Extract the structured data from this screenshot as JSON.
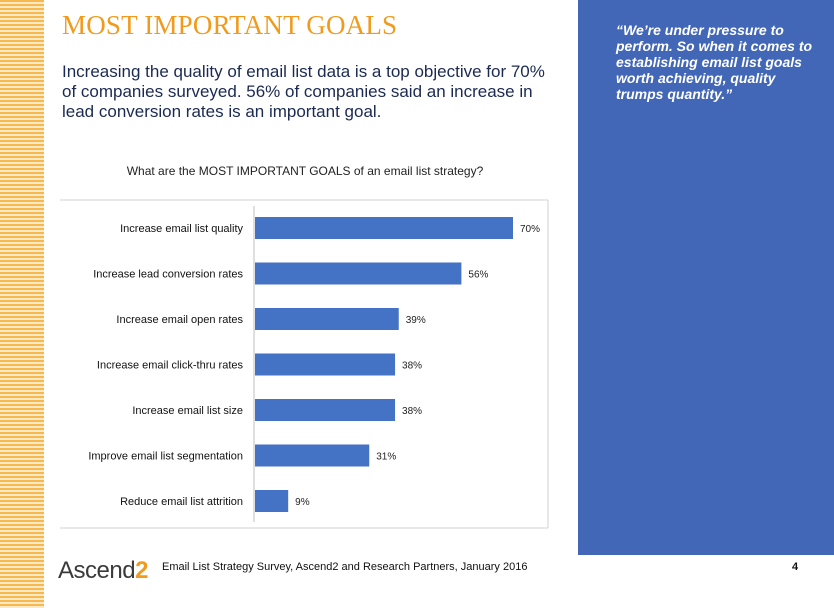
{
  "slide": {
    "title": "MOST IMPORTANT GOALS",
    "intro": "Increasing the quality of email list data is a top objective for 70% of companies surveyed. 56% of companies said an increase in lead conversion rates is an important goal.",
    "quote": "“We’re under pressure to perform. So when it comes to establishing email list goals worth achieving, quality trumps quantity.”",
    "logo_text": "Ascend",
    "logo_suffix": "2",
    "footer": "Email List Strategy Survey, Ascend2 and Research Partners, January 2016",
    "page_number": "4"
  },
  "colors": {
    "accent": "#f19a1b",
    "panel": "#4267b6",
    "bar": "#4472c4"
  },
  "chart_data": {
    "type": "bar",
    "orientation": "horizontal",
    "title": "What are the MOST IMPORTANT GOALS of an email list strategy?",
    "categories": [
      "Increase email list quality",
      "Increase lead conversion rates",
      "Increase email open rates",
      "Increase email click-thru rates",
      "Increase email list size",
      "Improve email list segmentation",
      "Reduce email list attrition"
    ],
    "values": [
      70,
      56,
      39,
      38,
      38,
      31,
      9
    ],
    "value_labels": [
      "70%",
      "56%",
      "39%",
      "38%",
      "38%",
      "31%",
      "9%"
    ],
    "xlim": [
      0,
      80
    ],
    "grid": false,
    "legend": "none"
  }
}
